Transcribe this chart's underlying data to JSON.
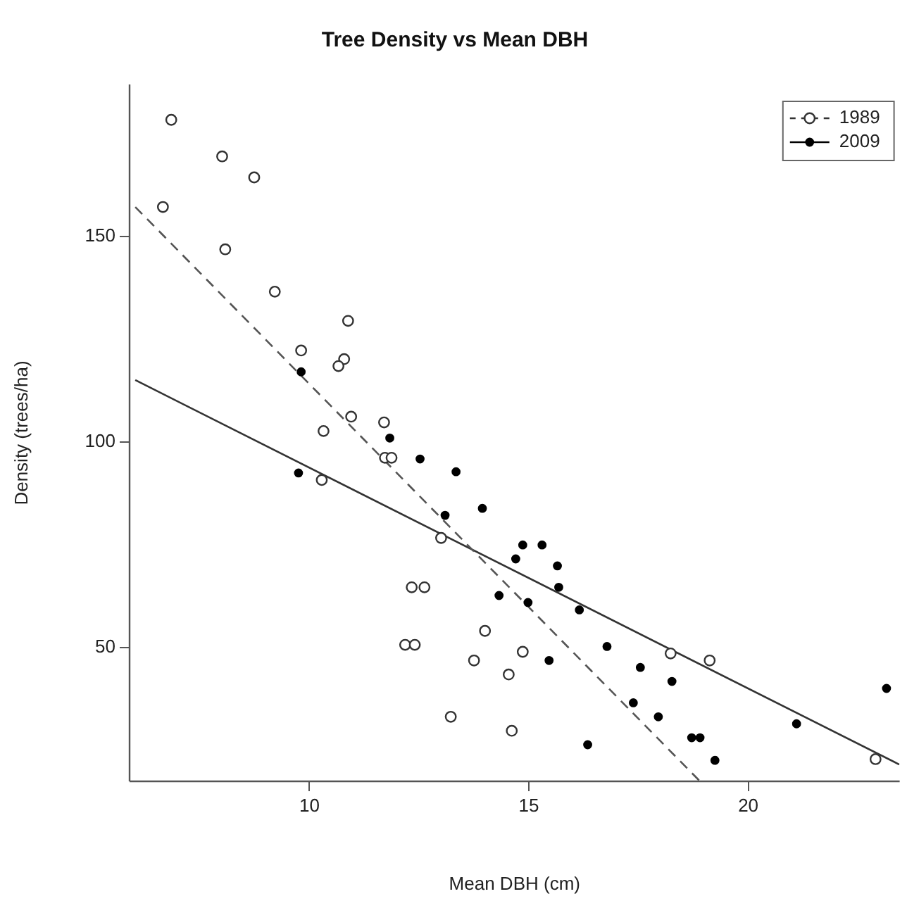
{
  "chart_data": {
    "type": "scatter",
    "title": "Tree Density vs Mean DBH",
    "xlabel": "Mean DBH (cm)",
    "ylabel": "Density (trees/ha)",
    "xlim": [
      5.9,
      23.45
    ],
    "ylim": [
      17.5,
      187
    ],
    "xticks": [
      10,
      15,
      20
    ],
    "yticks": [
      50,
      100,
      150
    ],
    "legend": "top right",
    "marker": "circle",
    "series": [
      {
        "name": "1989",
        "type": "scatter",
        "color": "#333333",
        "line_style": "dashed",
        "x": [
          6.85,
          8.01,
          8.74,
          6.66,
          8.08,
          9.21,
          9.81,
          10.88,
          10.79,
          10.66,
          10.95,
          10.32,
          11.7,
          11.72,
          11.87,
          10.28,
          13.0,
          12.33,
          12.62,
          12.18,
          12.4,
          14.0,
          13.75,
          14.86,
          14.54,
          13.22,
          14.61,
          18.23,
          19.12,
          22.9
        ],
        "values": [
          178.4,
          169.5,
          164.4,
          157.2,
          146.9,
          136.6,
          122.3,
          129.5,
          120.2,
          118.5,
          106.2,
          102.7,
          104.8,
          96.2,
          96.2,
          90.8,
          76.7,
          64.7,
          64.7,
          50.7,
          50.7,
          54.1,
          46.9,
          49.0,
          43.5,
          33.2,
          29.8,
          48.6,
          46.9,
          22.9
        ]
      },
      {
        "name": "2009",
        "type": "scatter",
        "color": "#000000",
        "line_style": "solid",
        "x": [
          9.81,
          11.83,
          12.52,
          9.75,
          13.34,
          13.94,
          13.09,
          14.86,
          15.3,
          14.7,
          15.65,
          15.68,
          14.32,
          14.98,
          15.46,
          16.15,
          16.78,
          17.54,
          18.26,
          17.38,
          17.95,
          16.34,
          18.71,
          18.9,
          19.24,
          21.1,
          23.15
        ],
        "values": [
          117.1,
          101.0,
          95.9,
          92.5,
          92.8,
          83.9,
          82.2,
          75.0,
          75.0,
          71.6,
          69.9,
          64.7,
          62.7,
          61.0,
          46.9,
          59.2,
          50.3,
          45.2,
          41.8,
          36.6,
          33.2,
          26.4,
          28.1,
          28.1,
          22.6,
          31.5,
          40.1
        ]
      },
      {
        "type": "line",
        "color": "#555555",
        "line_style": "dashed",
        "marker": "none",
        "x": [
          6.03,
          18.9
        ],
        "values": [
          157.2,
          17.5
        ]
      },
      {
        "type": "line",
        "color": "#333333",
        "line_style": "solid",
        "marker": "none",
        "x": [
          6.03,
          23.44
        ],
        "values": [
          115.1,
          21.6
        ]
      }
    ]
  }
}
